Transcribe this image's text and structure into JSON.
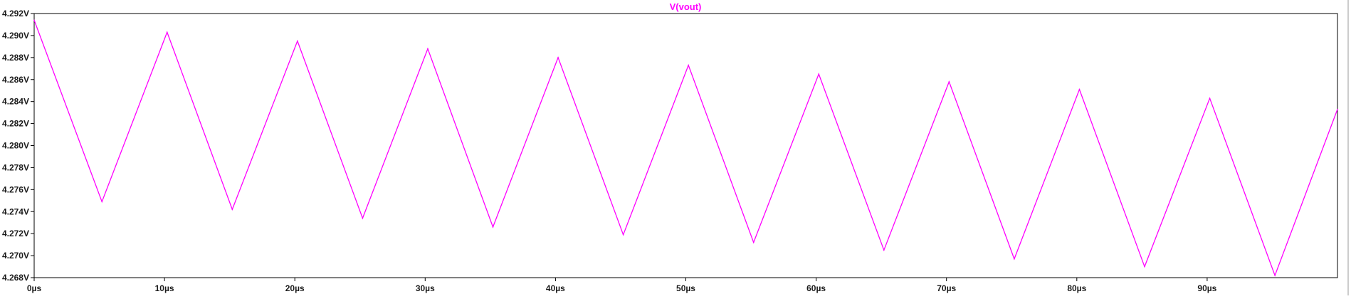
{
  "chart_data": {
    "type": "line",
    "title": "V(vout)",
    "xlabel": "",
    "ylabel": "",
    "xlim": [
      0,
      100
    ],
    "ylim": [
      4.268,
      4.292
    ],
    "grid": false,
    "x_ticks": [
      0,
      10,
      20,
      30,
      40,
      50,
      60,
      70,
      80,
      90
    ],
    "x_tick_labels": [
      "0µs",
      "10µs",
      "20µs",
      "30µs",
      "40µs",
      "50µs",
      "60µs",
      "70µs",
      "80µs",
      "90µs"
    ],
    "y_ticks": [
      4.268,
      4.27,
      4.272,
      4.274,
      4.276,
      4.278,
      4.28,
      4.282,
      4.284,
      4.286,
      4.288,
      4.29,
      4.292
    ],
    "y_tick_labels": [
      "4.268V",
      "4.270V",
      "4.272V",
      "4.274V",
      "4.276V",
      "4.278V",
      "4.280V",
      "4.282V",
      "4.284V",
      "4.286V",
      "4.288V",
      "4.290V",
      "4.292V"
    ],
    "series": [
      {
        "name": "V(vout)",
        "color": "#ff00ff",
        "x": [
          0,
          5.2,
          10.2,
          15.2,
          20.2,
          25.2,
          30.2,
          35.2,
          40.2,
          45.2,
          50.2,
          55.2,
          60.2,
          65.2,
          70.2,
          75.2,
          80.2,
          85.2,
          90.2,
          95.2,
          100
        ],
        "y": [
          4.2914,
          4.2749,
          4.2903,
          4.2742,
          4.2895,
          4.2734,
          4.2888,
          4.2726,
          4.288,
          4.2719,
          4.2873,
          4.2712,
          4.2865,
          4.2705,
          4.2858,
          4.2697,
          4.2851,
          4.269,
          4.2843,
          4.2682,
          4.2833
        ]
      }
    ]
  }
}
